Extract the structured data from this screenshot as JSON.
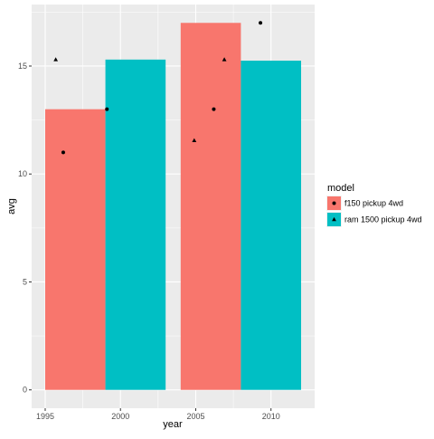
{
  "chart_data": {
    "type": "bar",
    "title": "",
    "xlabel": "year",
    "ylabel": "avg",
    "xlim": [
      1994.1,
      2012.9
    ],
    "ylim": [
      -0.85,
      17.85
    ],
    "xticks": [
      1995,
      2000,
      2005,
      2010
    ],
    "yticks": [
      0,
      5,
      10,
      15
    ],
    "xtick_labels": [
      "1995",
      "2000",
      "2005",
      "2010"
    ],
    "ytick_labels": [
      "0",
      "5",
      "10",
      "15"
    ],
    "grid": true,
    "legend": {
      "title": "model",
      "placement": "right"
    },
    "bar_width": 4,
    "series": [
      {
        "name": "f150 pickup 4wd",
        "color": "#F8766D",
        "bars": [
          {
            "x": 1997,
            "value": 13
          },
          {
            "x": 2006,
            "value": 17
          }
        ],
        "point_shape": "circle",
        "points": [
          {
            "x": 1996.2,
            "y": 11
          },
          {
            "x": 1999.1,
            "y": 13
          },
          {
            "x": 2006.2,
            "y": 13
          },
          {
            "x": 2009.3,
            "y": 17
          }
        ]
      },
      {
        "name": "ram 1500 pickup 4wd",
        "color": "#00BFC4",
        "bars": [
          {
            "x": 2001,
            "value": 15.3
          },
          {
            "x": 2010,
            "value": 15.25
          }
        ],
        "point_shape": "triangle",
        "points": [
          {
            "x": 1995.7,
            "y": 15.3
          },
          {
            "x": 2004.9,
            "y": 11.55
          },
          {
            "x": 2006.9,
            "y": 15.3
          }
        ]
      }
    ]
  }
}
